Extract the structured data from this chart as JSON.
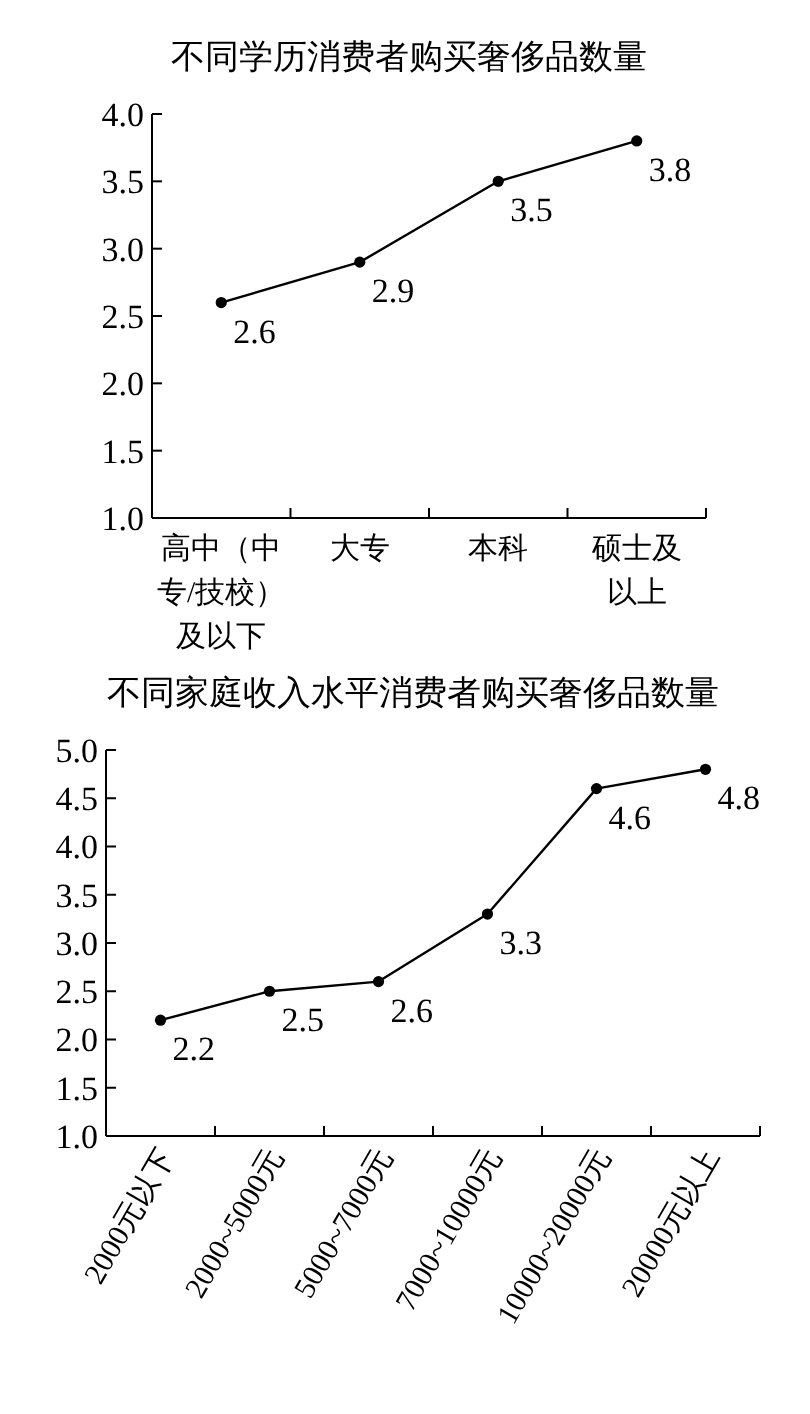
{
  "chart_data": [
    {
      "type": "line",
      "title": "不同学历消费者购买奢侈品数量",
      "categories": [
        "高中（中专/技校）及以下",
        "大专",
        "本科",
        "硕士及以上"
      ],
      "series": [
        {
          "color": "#000000",
          "values": [
            2.6,
            2.9,
            3.5,
            3.8
          ]
        }
      ],
      "ylim": [
        1.0,
        4.0
      ],
      "yticks": [
        {
          "value": 1,
          "label": "1.0"
        },
        {
          "value": 1.5,
          "label": "1.5"
        },
        {
          "value": 2,
          "label": "2.0"
        },
        {
          "value": 2.5,
          "label": "2.5"
        },
        {
          "value": 3,
          "label": "3.0"
        },
        {
          "value": 3.5,
          "label": "3.5"
        },
        {
          "value": 4,
          "label": "4.0"
        }
      ],
      "data_labels": true,
      "marker": "circle"
    },
    {
      "type": "line",
      "title": "不同家庭收入水平消费者购买奢侈品数量",
      "categories": [
        "2000元以下",
        "2000~5000元",
        "5000~7000元",
        "7000~10000元",
        "10000~20000元",
        "20000元以上"
      ],
      "series": [
        {
          "color": "#000000",
          "values": [
            2.2,
            2.5,
            2.6,
            3.3,
            4.6,
            4.8
          ]
        }
      ],
      "ylim": [
        1.0,
        5.0
      ],
      "yticks": [
        {
          "value": 1,
          "label": "1.0"
        },
        {
          "value": 1.5,
          "label": "1.5"
        },
        {
          "value": 2,
          "label": "2.0"
        },
        {
          "value": 2.5,
          "label": "2.5"
        },
        {
          "value": 3,
          "label": "3.0"
        },
        {
          "value": 3.5,
          "label": "3.5"
        },
        {
          "value": 4,
          "label": "4.0"
        },
        {
          "value": 4.5,
          "label": "4.5"
        },
        {
          "value": 5,
          "label": "5.0"
        }
      ],
      "data_labels": true,
      "marker": "circle"
    }
  ]
}
